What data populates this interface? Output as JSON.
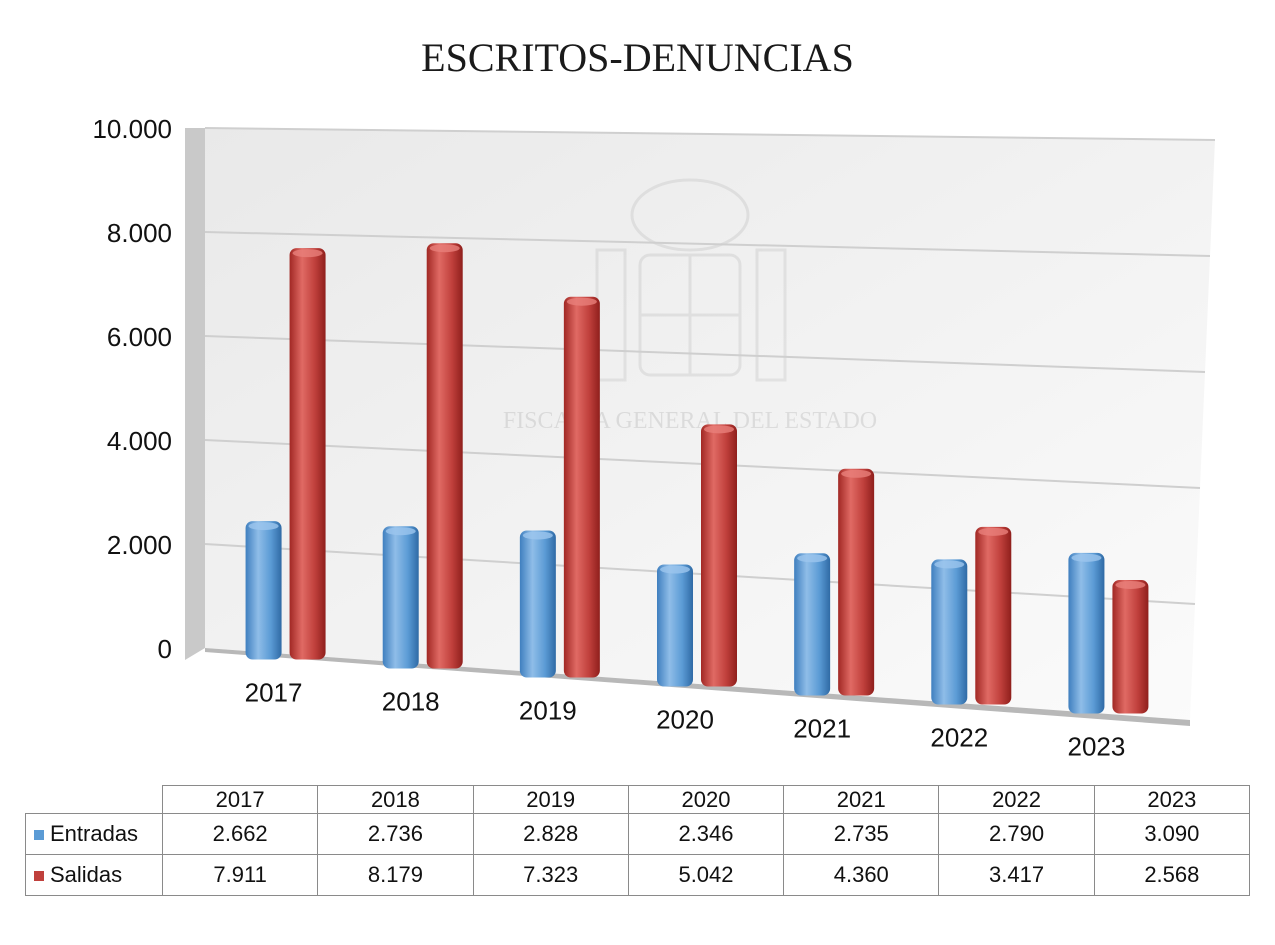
{
  "chart_data": {
    "type": "bar",
    "title": "ESCRITOS-DENUNCIAS",
    "categories": [
      "2017",
      "2018",
      "2019",
      "2020",
      "2021",
      "2022",
      "2023"
    ],
    "series": [
      {
        "name": "Entradas",
        "color": "#5b9bd5",
        "values": [
          2662,
          2736,
          2828,
          2346,
          2735,
          2790,
          3090
        ],
        "labels": [
          "2.662",
          "2.736",
          "2.828",
          "2.346",
          "2.735",
          "2.790",
          "3.090"
        ]
      },
      {
        "name": "Salidas",
        "color": "#c0403c",
        "values": [
          7911,
          8179,
          7323,
          5042,
          4360,
          3417,
          2568
        ],
        "labels": [
          "7.911",
          "8.179",
          "7.323",
          "5.042",
          "4.360",
          "3.417",
          "2.568"
        ]
      }
    ],
    "ylim": [
      0,
      10000
    ],
    "yticks": [
      0,
      2000,
      4000,
      6000,
      8000,
      10000
    ],
    "ytick_labels": [
      "0",
      "2.000",
      "4.000",
      "6.000",
      "8.000",
      "10.000"
    ],
    "grid": true,
    "legend": "data-table"
  },
  "watermark": "FISCALÍA GENERAL DEL ESTADO"
}
